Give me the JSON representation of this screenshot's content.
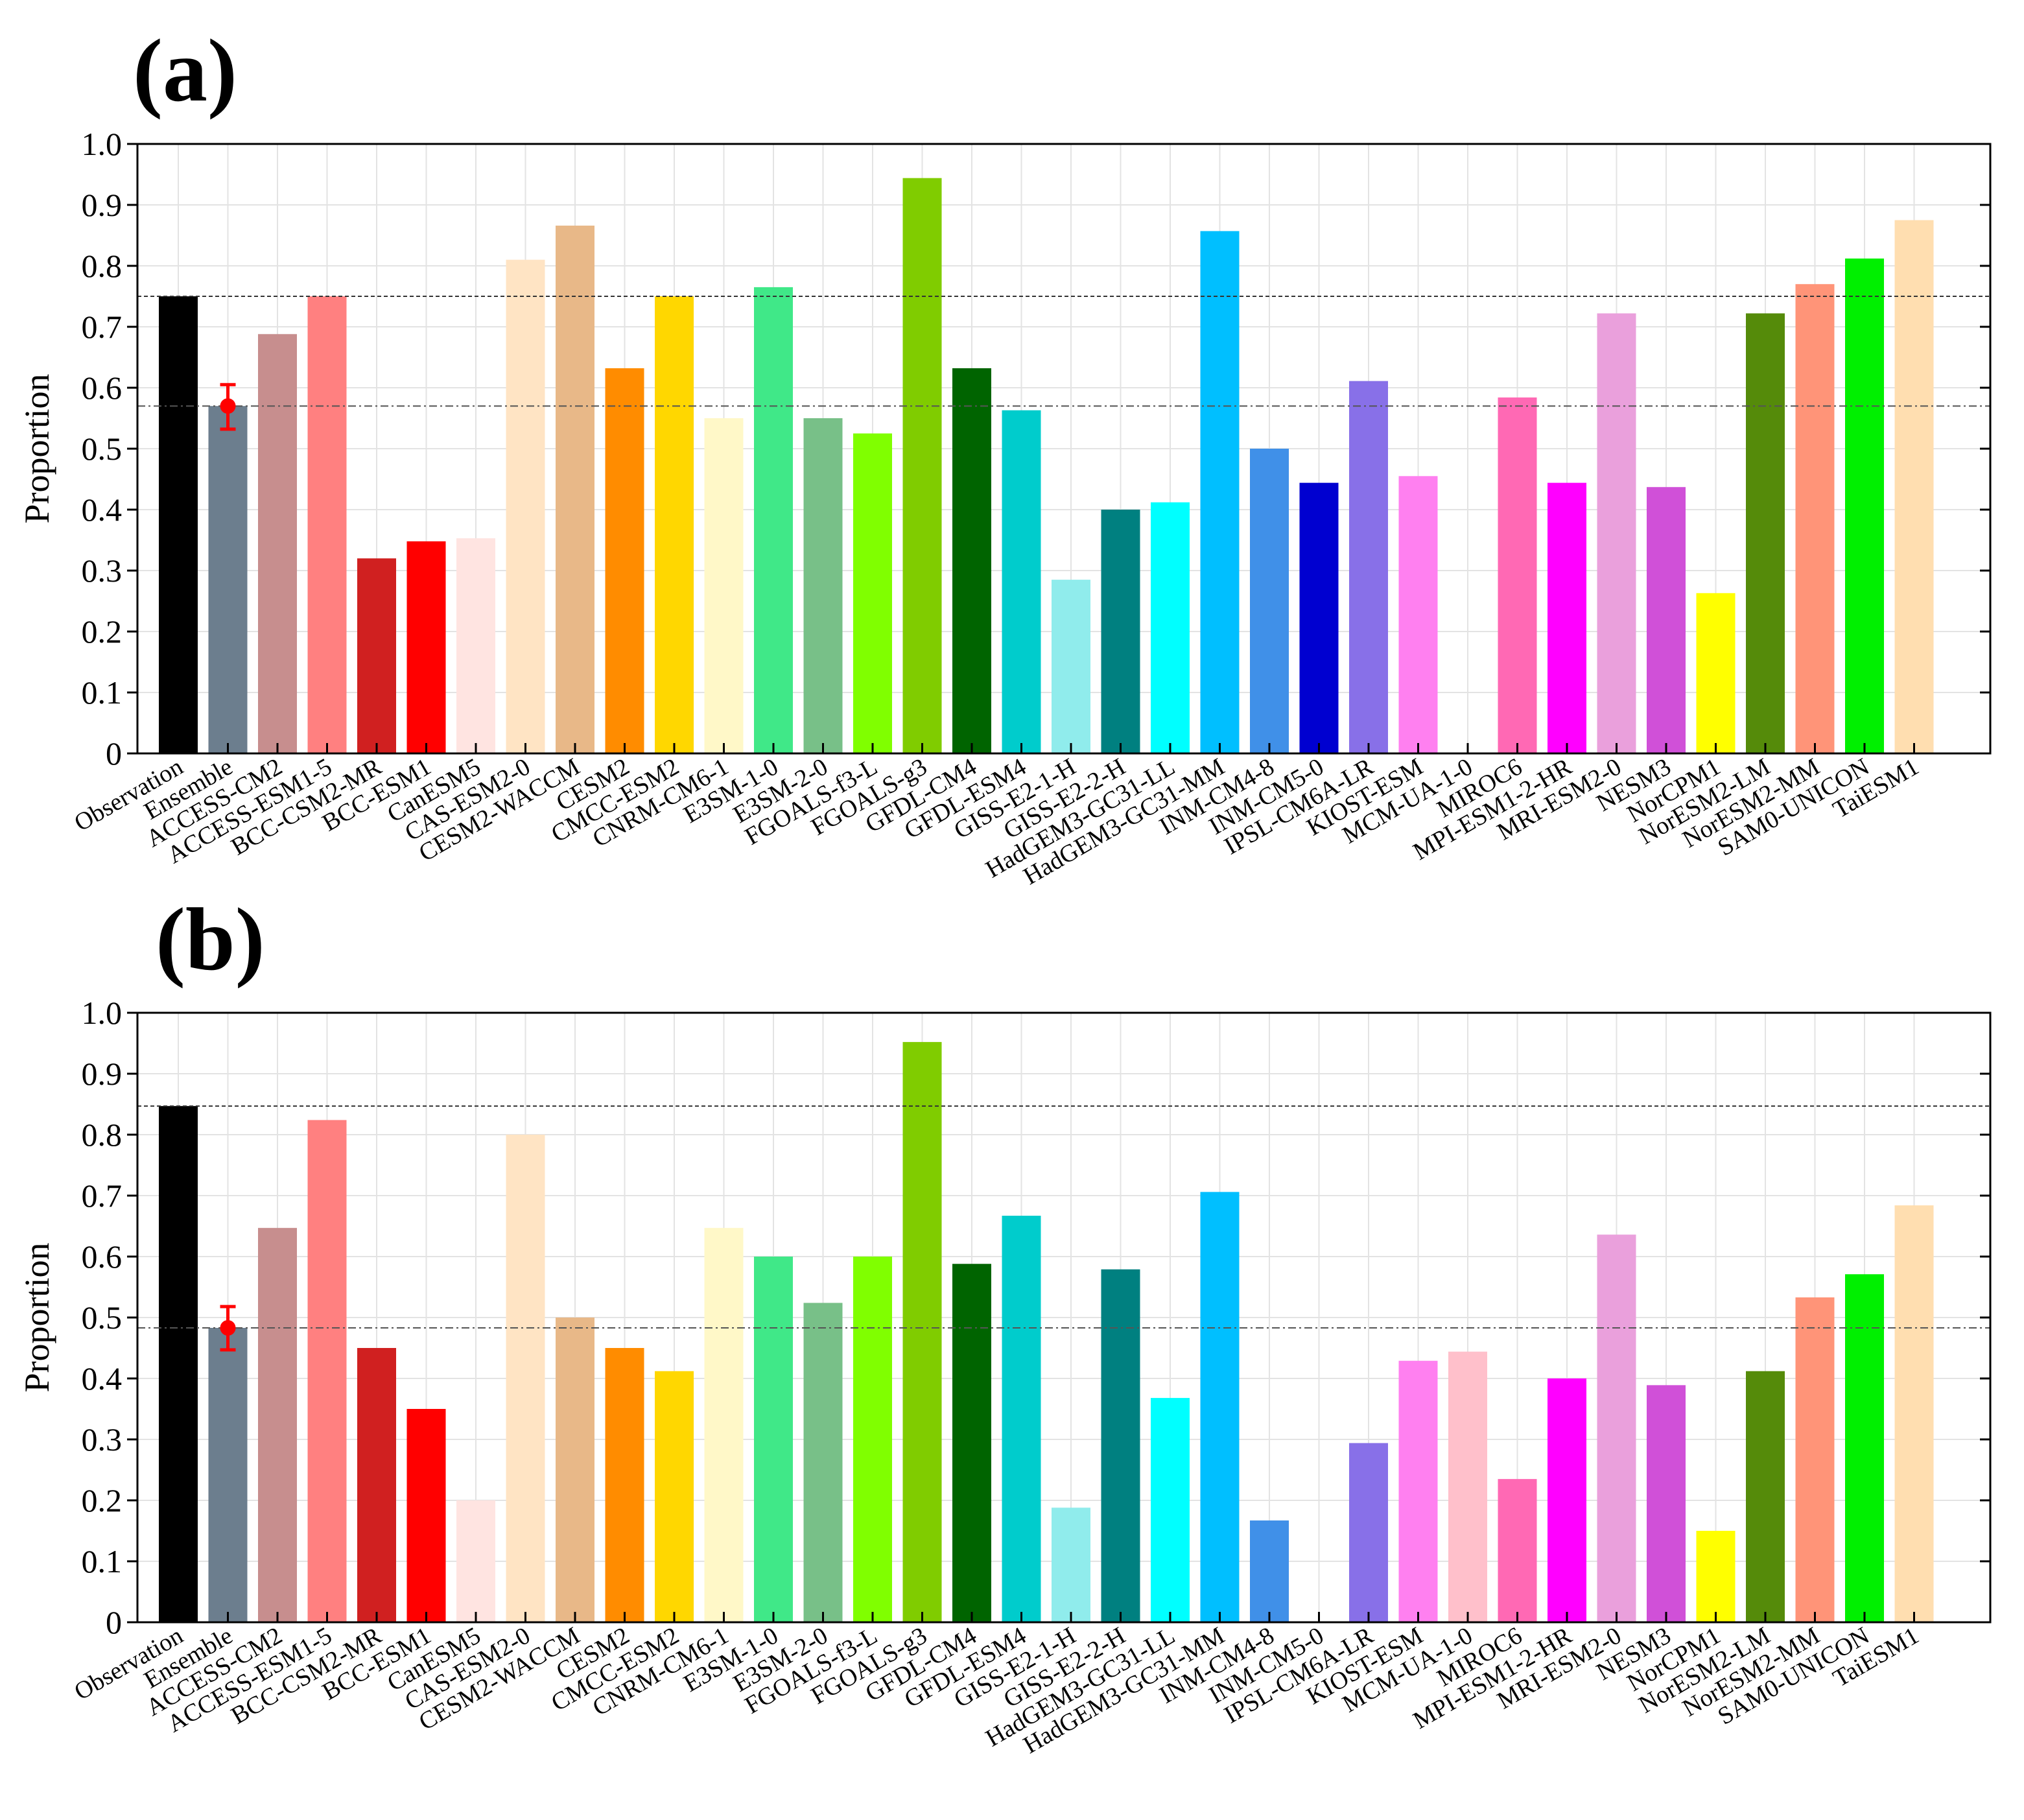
{
  "chart_data": [
    {
      "type": "bar",
      "panel_label": "(a)",
      "ylabel": "Proportion",
      "xlabel": "",
      "ylim": [
        0,
        1.0
      ],
      "yticks": [
        "0",
        "0.1",
        "0.2",
        "0.3",
        "0.4",
        "0.5",
        "0.6",
        "0.7",
        "0.8",
        "0.9",
        "1.0"
      ],
      "grid": true,
      "categories": [
        "Observation",
        "Ensemble",
        "ACCESS-CM2",
        "ACCESS-ESM1-5",
        "BCC-CSM2-MR",
        "BCC-ESM1",
        "CanESM5",
        "CAS-ESM2-0",
        "CESM2-WACCM",
        "CESM2",
        "CMCC-ESM2",
        "CNRM-CM6-1",
        "E3SM-1-0",
        "E3SM-2-0",
        "FGOALS-f3-L",
        "FGOALS-g3",
        "GFDL-CM4",
        "GFDL-ESM4",
        "GISS-E2-1-H",
        "GISS-E2-2-H",
        "HadGEM3-GC31-LL",
        "HadGEM3-GC31-MM",
        "INM-CM4-8",
        "INM-CM5-0",
        "IPSL-CM6A-LR",
        "KIOST-ESM",
        "MCM-UA-1-0",
        "MIROC6",
        "MPI-ESM1-2-HR",
        "MRI-ESM2-0",
        "NESM3",
        "NorCPM1",
        "NorESM2-LM",
        "NorESM2-MM",
        "SAM0-UNICON",
        "TaiESM1"
      ],
      "values": [
        0.75,
        0.57,
        0.688,
        0.75,
        0.32,
        0.348,
        0.353,
        0.81,
        0.866,
        0.632,
        0.75,
        0.55,
        0.765,
        0.55,
        0.525,
        0.944,
        0.632,
        0.563,
        0.285,
        0.4,
        0.412,
        0.857,
        0.5,
        0.444,
        0.611,
        0.455,
        0.0,
        0.584,
        0.444,
        0.722,
        0.437,
        0.263,
        0.722,
        0.77,
        0.812,
        0.875
      ],
      "colors": [
        "#000000",
        "#6c7e8e",
        "#c78e8e",
        "#ff8080",
        "#d02020",
        "#ff0000",
        "#ffe4e1",
        "#ffe4c4",
        "#e8b888",
        "#ff8c00",
        "#ffd700",
        "#fff8c8",
        "#40e888",
        "#78c088",
        "#80ff00",
        "#80cc00",
        "#006400",
        "#00cccc",
        "#90ecec",
        "#008080",
        "#00ffff",
        "#00bfff",
        "#4090e8",
        "#0000d0",
        "#8870e8",
        "#ff80f0",
        "#ffc0cb",
        "#ff69b4",
        "#ff00ff",
        "#eaa0dc",
        "#d050d8",
        "#ffff00",
        "#558b0a",
        "#ff9478",
        "#00f000",
        "#ffdeb0"
      ],
      "error_bar": {
        "category": "Ensemble",
        "center": 0.57,
        "lower": 0.532,
        "upper": 0.605,
        "color": "#ff0000"
      },
      "reference_lines": [
        {
          "value": 0.75,
          "style": "dashed"
        },
        {
          "value": 0.57,
          "style": "dash-dot"
        }
      ]
    },
    {
      "type": "bar",
      "panel_label": "(b)",
      "ylabel": "Proportion",
      "xlabel": "",
      "ylim": [
        0,
        1.0
      ],
      "yticks": [
        "0",
        "0.1",
        "0.2",
        "0.3",
        "0.4",
        "0.5",
        "0.6",
        "0.7",
        "0.8",
        "0.9",
        "1.0"
      ],
      "grid": true,
      "categories": [
        "Observation",
        "Ensemble",
        "ACCESS-CM2",
        "ACCESS-ESM1-5",
        "BCC-CSM2-MR",
        "BCC-ESM1",
        "CanESM5",
        "CAS-ESM2-0",
        "CESM2-WACCM",
        "CESM2",
        "CMCC-ESM2",
        "CNRM-CM6-1",
        "E3SM-1-0",
        "E3SM-2-0",
        "FGOALS-f3-L",
        "FGOALS-g3",
        "GFDL-CM4",
        "GFDL-ESM4",
        "GISS-E2-1-H",
        "GISS-E2-2-H",
        "HadGEM3-GC31-LL",
        "HadGEM3-GC31-MM",
        "INM-CM4-8",
        "INM-CM5-0",
        "IPSL-CM6A-LR",
        "KIOST-ESM",
        "MCM-UA-1-0",
        "MIROC6",
        "MPI-ESM1-2-HR",
        "MRI-ESM2-0",
        "NESM3",
        "NorCPM1",
        "NorESM2-LM",
        "NorESM2-MM",
        "SAM0-UNICON",
        "TaiESM1"
      ],
      "values": [
        0.847,
        0.483,
        0.647,
        0.824,
        0.45,
        0.35,
        0.2,
        0.8,
        0.5,
        0.45,
        0.412,
        0.647,
        0.6,
        0.524,
        0.6,
        0.952,
        0.588,
        0.667,
        0.188,
        0.579,
        0.368,
        0.706,
        0.167,
        0.0,
        0.294,
        0.429,
        0.444,
        0.235,
        0.4,
        0.636,
        0.389,
        0.15,
        0.412,
        0.533,
        0.571,
        0.684
      ],
      "colors": [
        "#000000",
        "#6c7e8e",
        "#c78e8e",
        "#ff8080",
        "#d02020",
        "#ff0000",
        "#ffe4e1",
        "#ffe4c4",
        "#e8b888",
        "#ff8c00",
        "#ffd700",
        "#fff8c8",
        "#40e888",
        "#78c088",
        "#80ff00",
        "#80cc00",
        "#006400",
        "#00cccc",
        "#90ecec",
        "#008080",
        "#00ffff",
        "#00bfff",
        "#4090e8",
        "#0000d0",
        "#8870e8",
        "#ff80f0",
        "#ffc0cb",
        "#ff69b4",
        "#ff00ff",
        "#eaa0dc",
        "#d050d8",
        "#ffff00",
        "#558b0a",
        "#ff9478",
        "#00f000",
        "#ffdeb0"
      ],
      "error_bar": {
        "category": "Ensemble",
        "center": 0.483,
        "lower": 0.447,
        "upper": 0.518,
        "color": "#ff0000"
      },
      "reference_lines": [
        {
          "value": 0.847,
          "style": "dashed"
        },
        {
          "value": 0.483,
          "style": "dash-dot"
        }
      ]
    }
  ]
}
